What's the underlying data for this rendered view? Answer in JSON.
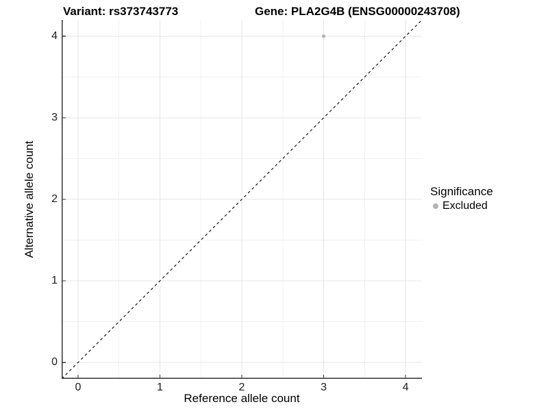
{
  "header": {
    "variant_title": "Variant: rs373743773",
    "gene_title": "Gene: PLA2G4B (ENSG00000243708)"
  },
  "axes": {
    "x_title": "Reference allele count",
    "y_title": "Alternative allele count"
  },
  "legend": {
    "title": "Significance",
    "items": [
      {
        "label": "Excluded",
        "color": "#b3b3b3"
      }
    ]
  },
  "colors": {
    "background": "#ffffff",
    "grid_major": "#e4e4e4",
    "grid_minor": "#f0f0f0",
    "axis_line": "#333333",
    "tick_text": "#1a1a1a",
    "reference_line": "#000000",
    "point_excluded": "#b3b3b3"
  },
  "chart_data": {
    "type": "scatter",
    "title_left": "Variant: rs373743773",
    "title_right": "Gene: PLA2G4B (ENSG00000243708)",
    "xlabel": "Reference allele count",
    "ylabel": "Alternative allele count",
    "xlim": [
      -0.2,
      4.2
    ],
    "ylim": [
      -0.2,
      4.2
    ],
    "x_ticks": [
      0,
      1,
      2,
      3,
      4
    ],
    "y_ticks": [
      0,
      1,
      2,
      3,
      4
    ],
    "x_minor": [
      0.5,
      1.5,
      2.5,
      3.5
    ],
    "y_minor": [
      0.5,
      1.5,
      2.5,
      3.5
    ],
    "grid": true,
    "legend_position": "right",
    "series": [
      {
        "name": "Excluded",
        "points": [
          {
            "x": 3,
            "y": 4
          }
        ]
      }
    ],
    "reference_line": {
      "type": "identity",
      "equation": "y = x",
      "style": "dashed"
    }
  }
}
